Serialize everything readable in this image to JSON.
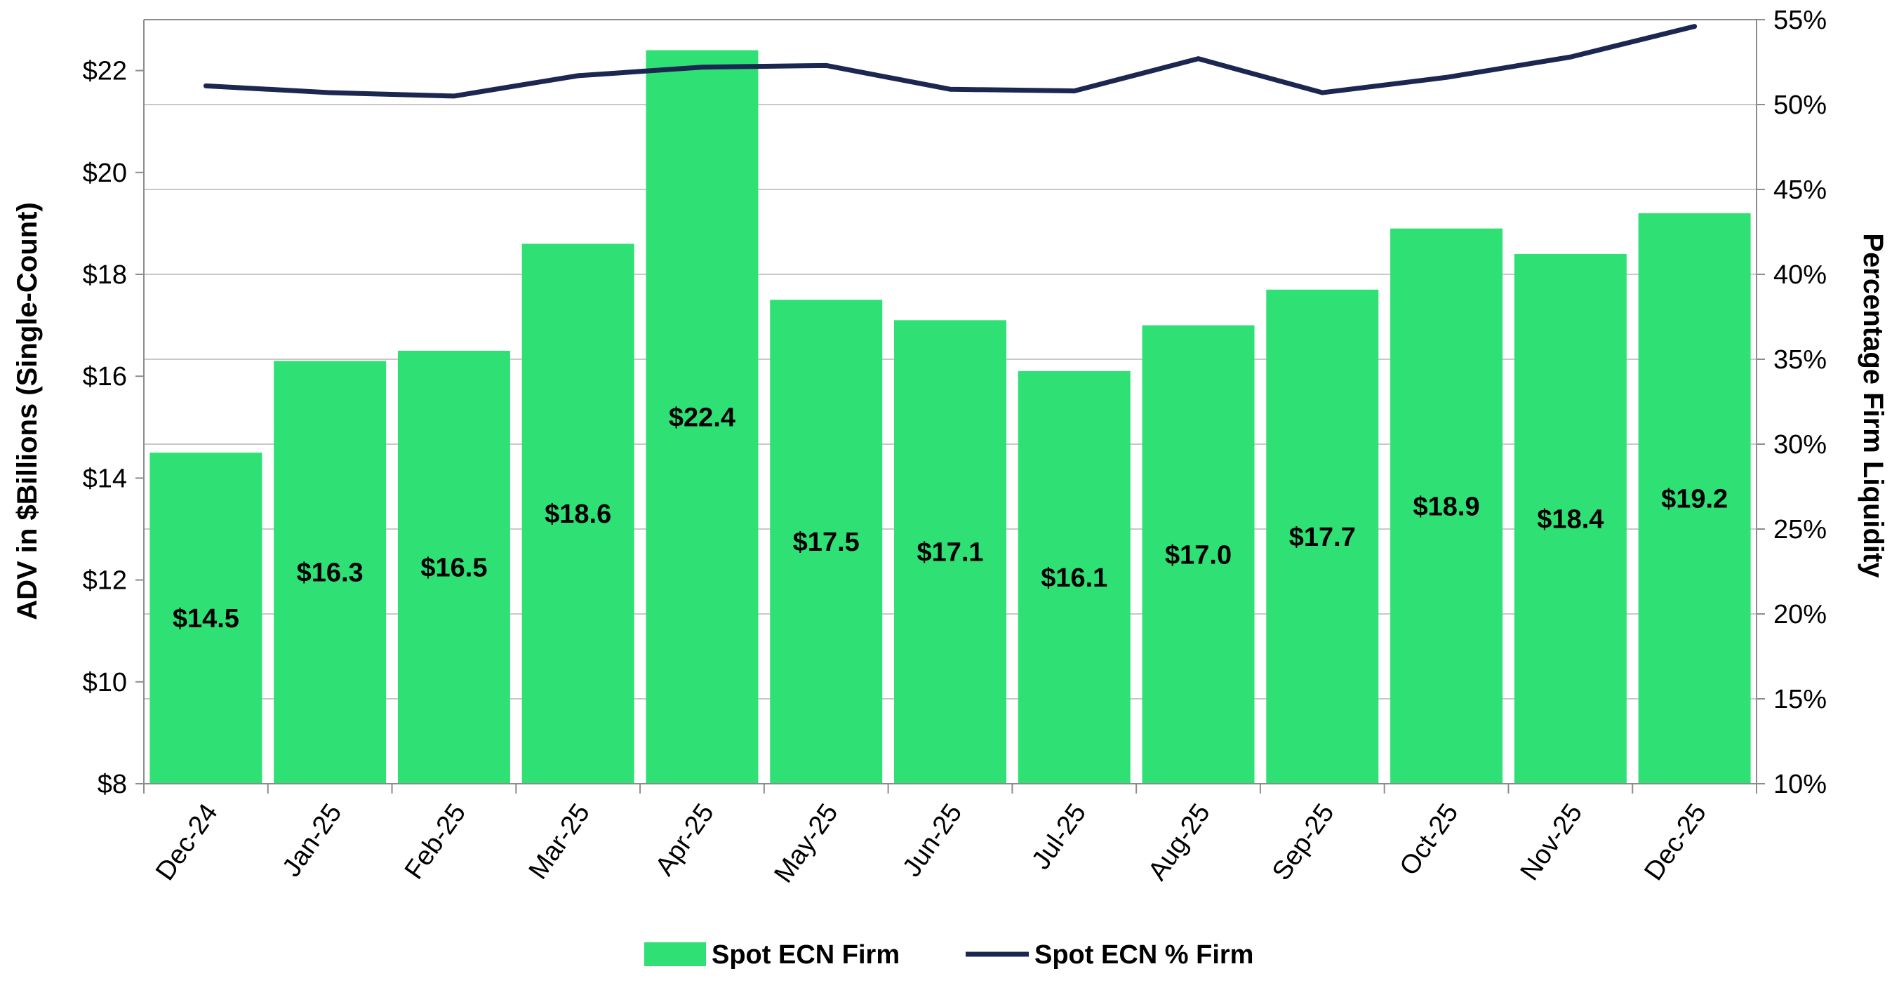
{
  "chart_data": {
    "type": "bar",
    "categories": [
      "Dec-24",
      "Jan-25",
      "Feb-25",
      "Mar-25",
      "Apr-25",
      "May-25",
      "Jun-25",
      "Jul-25",
      "Aug-25",
      "Sep-25",
      "Oct-25",
      "Nov-25",
      "Dec-25"
    ],
    "series": [
      {
        "name": "Spot ECN Firm",
        "type": "bar",
        "axis": "left",
        "color": "#2FE074",
        "values": [
          14.5,
          16.3,
          16.5,
          18.6,
          22.4,
          17.5,
          17.1,
          16.1,
          17.0,
          17.7,
          18.9,
          18.4,
          19.2
        ],
        "labels": [
          "$14.5",
          "$16.3",
          "$16.5",
          "$18.6",
          "$22.4",
          "$17.5",
          "$17.1",
          "$16.1",
          "$17.0",
          "$17.7",
          "$18.9",
          "$18.4",
          "$19.2"
        ]
      },
      {
        "name": "Spot ECN % Firm",
        "type": "line",
        "axis": "right",
        "color": "#1B2750",
        "values": [
          51.1,
          50.7,
          50.5,
          51.7,
          52.2,
          52.3,
          50.9,
          50.8,
          52.7,
          50.7,
          51.6,
          52.8,
          54.6
        ]
      }
    ],
    "title": "",
    "xlabel": "",
    "ylabel": "ADV in $Billions  (Single-Count)",
    "y2label": "Percentage Firm Liquidity",
    "ylim": [
      8,
      23
    ],
    "y2lim": [
      10,
      55
    ],
    "yticks": [
      8,
      10,
      12,
      14,
      16,
      18,
      20,
      22
    ],
    "ytick_labels": [
      "$8",
      "$10",
      "$12",
      "$14",
      "$16",
      "$18",
      "$20",
      "$22"
    ],
    "y2ticks": [
      10,
      15,
      20,
      25,
      30,
      35,
      40,
      45,
      50,
      55
    ],
    "y2tick_labels": [
      "10%",
      "15%",
      "20%",
      "25%",
      "30%",
      "35%",
      "40%",
      "45%",
      "50%",
      "55%"
    ],
    "grid": true,
    "legend": "bottom-center"
  }
}
